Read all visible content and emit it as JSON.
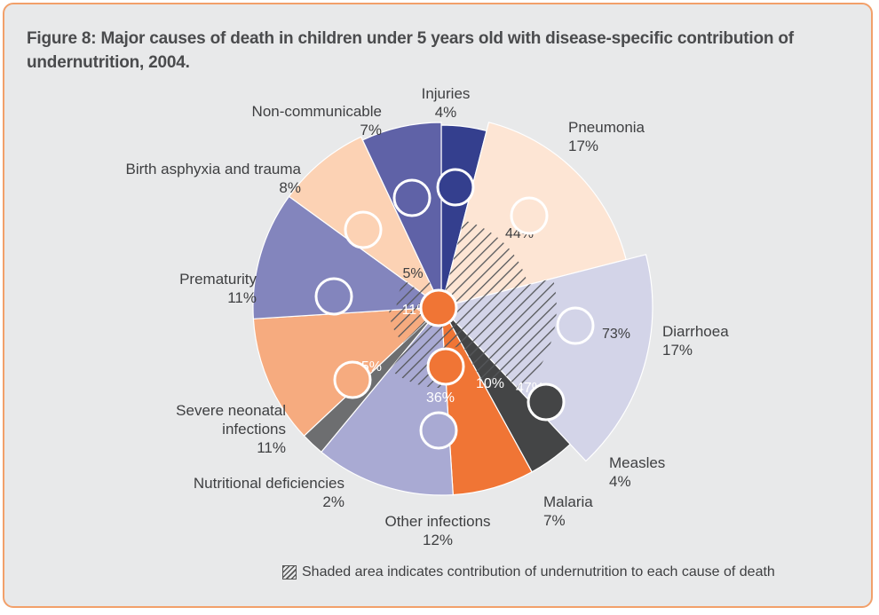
{
  "title": "Figure 8: Major causes of death in children under 5 years old with disease-specific contribution of undernutrition, 2004.",
  "legend_text": "Shaded area indicates contribution of undernutrition to each cause of death",
  "chart_data": {
    "type": "pie",
    "title": "Figure 8: Major causes of death in children under 5 years old with disease-specific contribution of undernutrition, 2004.",
    "slices": [
      {
        "name": "Injuries",
        "value_label": "4%",
        "value": 4,
        "color": "#343f8e",
        "undernutrition_label": ""
      },
      {
        "name": "Pneumonia",
        "value_label": "17%",
        "value": 17,
        "color": "#fde5d4",
        "undernutrition_label": "44%",
        "undernutrition": 44
      },
      {
        "name": "Diarrhoea",
        "value_label": "17%",
        "value": 17,
        "color": "#d3d4e8",
        "undernutrition_label": "73%",
        "undernutrition": 73
      },
      {
        "name": "Measles",
        "value_label": "4%",
        "value": 4,
        "color": "#444546",
        "undernutrition_label": "47%",
        "undernutrition": 47
      },
      {
        "name": "Malaria",
        "value_label": "7%",
        "value": 7,
        "color": "#f07535",
        "undernutrition_label": "10%",
        "undernutrition": 10
      },
      {
        "name": "Other infections",
        "value_label": "12%",
        "value": 12,
        "color": "#a9aad3",
        "undernutrition_label": "36%",
        "undernutrition": 36
      },
      {
        "name": "Nutritional deficiencies",
        "value_label": "2%",
        "value": 2,
        "color": "#6d6e70",
        "undernutrition_label": ""
      },
      {
        "name": "Severe neonatal infections",
        "value_label": "11%",
        "value": 11,
        "color": "#f6ab7f",
        "undernutrition_label": "15%",
        "undernutrition": 15
      },
      {
        "name": "Prematurity",
        "value_label": "11%",
        "value": 11,
        "color": "#8385bd",
        "undernutrition_label": "11%",
        "undernutrition": 11
      },
      {
        "name": "Birth asphyxia and trauma",
        "value_label": "8%",
        "value": 8,
        "color": "#fcd2b4",
        "undernutrition_label": "5%",
        "undernutrition": 5
      },
      {
        "name": "Non-communicable",
        "value_label": "7%",
        "value": 7,
        "color": "#5f62a7",
        "undernutrition_label": ""
      }
    ]
  }
}
